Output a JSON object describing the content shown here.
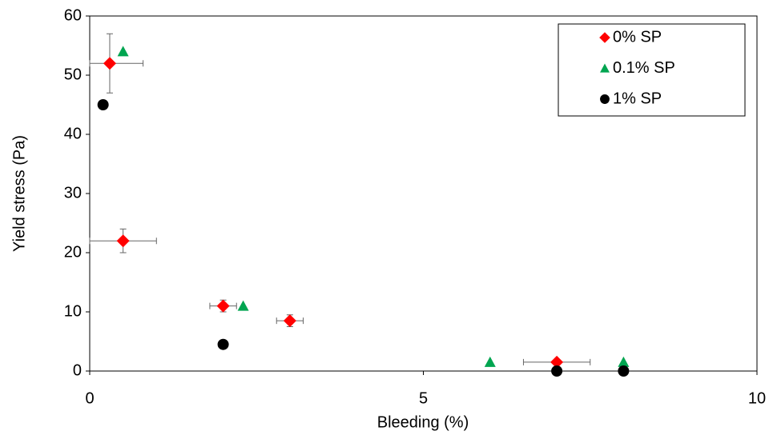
{
  "chart_data": {
    "type": "scatter",
    "x_label": "Bleeding (%)",
    "y_label": "Yield stress (Pa)",
    "xlim": [
      0,
      10
    ],
    "xticks": [
      0,
      5,
      10
    ],
    "ylim": [
      0,
      60
    ],
    "yticks": [
      0,
      10,
      20,
      30,
      40,
      50,
      60
    ],
    "legend": "upper right",
    "grid": false,
    "series": [
      {
        "name": "0% SP",
        "color": "#ff0000",
        "marker": "diamond",
        "x": [
          0.3,
          0.5,
          2,
          3,
          7
        ],
        "values": [
          52,
          22,
          11,
          8.5,
          1.5
        ],
        "xerr": [
          0.5,
          0.5,
          0.2,
          0.2,
          0.5
        ],
        "yerr": [
          5,
          2,
          1,
          1,
          null
        ]
      },
      {
        "name": "0.1% SP",
        "color": "#00a550",
        "marker": "triangle",
        "x": [
          0.5,
          2.3,
          6,
          8
        ],
        "values": [
          54,
          11,
          1.5,
          1.5
        ]
      },
      {
        "name": "1% SP",
        "color": "#000000",
        "marker": "circle",
        "x": [
          0.2,
          2,
          7,
          8
        ],
        "values": [
          45,
          4.5,
          0,
          0
        ]
      }
    ]
  }
}
